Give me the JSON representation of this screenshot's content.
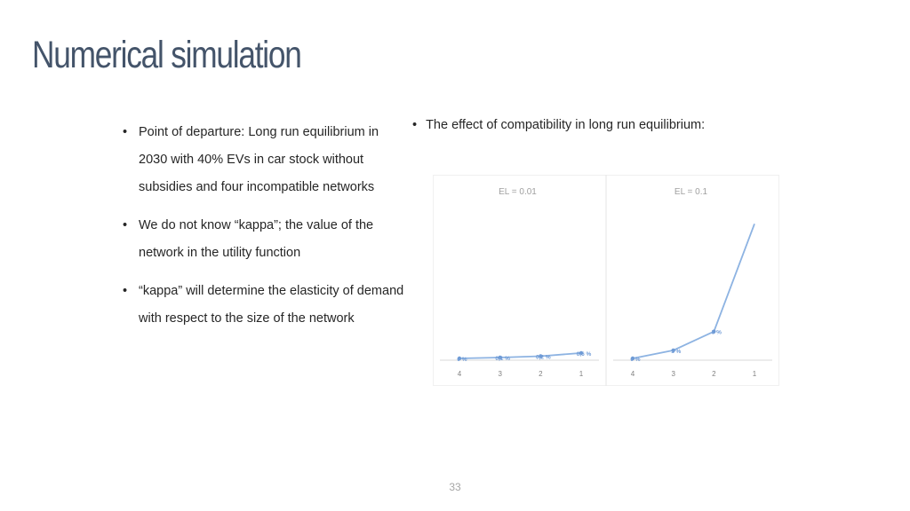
{
  "slide": {
    "title": "Numerical simulation",
    "page_number": "33",
    "bullet_char": "•"
  },
  "left_bullets": [
    "Point of departure: Long run equilibrium in 2030 with 40% EVs in car stock without subsidies and four incompatible networks",
    "We do not know “kappa”; the value of the network in the utility function",
    "“kappa” will determine the elasticity of demand with respect to the size of the network"
  ],
  "right_bullet": "The effect of compatibility in long run equilibrium:",
  "colors": {
    "title": "#44546a",
    "text": "#262626",
    "line": "#8db3e2",
    "point": "#6f9bd6",
    "axis": "#d9d9d9",
    "panel_label": "#a0a0a0"
  },
  "chart_data": [
    {
      "type": "line",
      "title": "EL = 0.01",
      "categories": [
        "4",
        "3",
        "2",
        "1"
      ],
      "values": [
        0,
        0.1,
        0.25,
        0.6
      ],
      "labels": [
        "0 %",
        "0,1 %",
        "0,2 %",
        "0,6 %"
      ],
      "ylim": [
        0,
        18
      ]
    },
    {
      "type": "line",
      "title": "EL = 0.1",
      "categories": [
        "4",
        "3",
        "2",
        "1"
      ],
      "values": [
        0,
        0.9,
        3.0,
        15.0
      ],
      "labels": [
        "0 %",
        "1 %",
        "3 %",
        ""
      ],
      "ylim": [
        0,
        18
      ]
    }
  ]
}
